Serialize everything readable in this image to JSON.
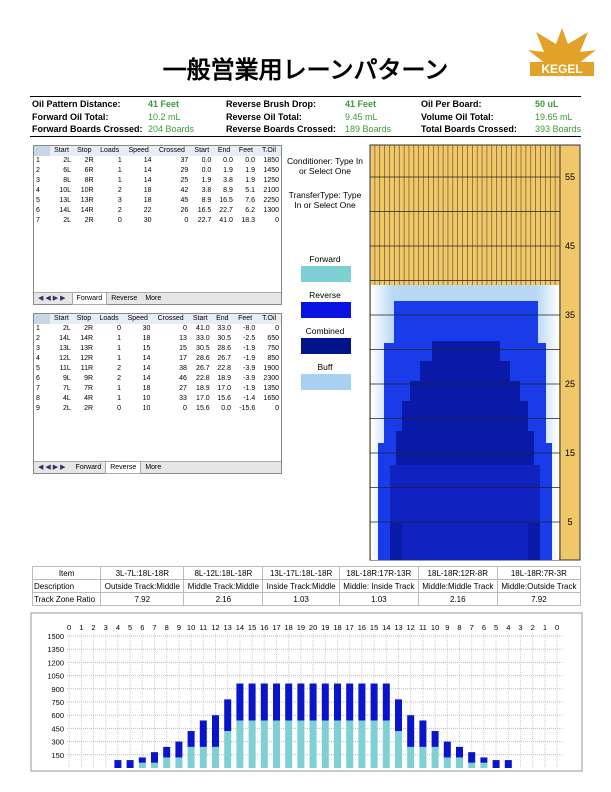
{
  "header": {
    "title": "一般営業用レーンパターン",
    "logo": "KEGEL"
  },
  "info": [
    {
      "label": "Oil Pattern Distance:",
      "value": "41 Feet"
    },
    {
      "label": "Reverse Brush Drop:",
      "value": "41 Feet"
    },
    {
      "label": "Oil Per Board:",
      "value": "50 uL"
    },
    {
      "label": "Forward Oil Total:",
      "value": "10.2 mL"
    },
    {
      "label": "Reverse Oil Total:",
      "value": "9.45 mL"
    },
    {
      "label": "Volume Oil Total:",
      "value": "19.65 mL"
    },
    {
      "label": "Forward Boards Crossed:",
      "value": "204 Boards"
    },
    {
      "label": "Reverse Boards Crossed:",
      "value": "189 Boards"
    },
    {
      "label": "Total Boards Crossed:",
      "value": "393 Boards"
    }
  ],
  "forward_table": {
    "columns": [
      "Start",
      "Stop",
      "Loads",
      "Speed",
      "Crossed",
      "Start",
      "End",
      "Feet",
      "T.Oil"
    ],
    "rows": [
      [
        "1",
        "2L",
        "2R",
        "1",
        "14",
        "37",
        "0.0",
        "0.0",
        "0.0",
        "1850"
      ],
      [
        "2",
        "6L",
        "6R",
        "1",
        "14",
        "29",
        "0.0",
        "1.9",
        "1.9",
        "1450"
      ],
      [
        "3",
        "8L",
        "8R",
        "1",
        "14",
        "25",
        "1.9",
        "3.8",
        "1.9",
        "1250"
      ],
      [
        "4",
        "10L",
        "10R",
        "2",
        "18",
        "42",
        "3.8",
        "8.9",
        "5.1",
        "2100"
      ],
      [
        "5",
        "13L",
        "13R",
        "3",
        "18",
        "45",
        "8.9",
        "16.5",
        "7.6",
        "2250"
      ],
      [
        "6",
        "14L",
        "14R",
        "2",
        "22",
        "26",
        "16.5",
        "22.7",
        "6.2",
        "1300"
      ],
      [
        "7",
        "2L",
        "2R",
        "0",
        "30",
        "0",
        "22.7",
        "41.0",
        "18.3",
        "0"
      ]
    ],
    "tabs": [
      "Forward",
      "Reverse",
      "More"
    ]
  },
  "reverse_table": {
    "columns": [
      "Start",
      "Stop",
      "Loads",
      "Speed",
      "Crossed",
      "Start",
      "End",
      "Feet",
      "T.Oil"
    ],
    "rows": [
      [
        "1",
        "2L",
        "2R",
        "0",
        "30",
        "0",
        "41.0",
        "33.0",
        "-8.0",
        "0"
      ],
      [
        "2",
        "14L",
        "14R",
        "1",
        "18",
        "13",
        "33.0",
        "30.5",
        "-2.5",
        "650"
      ],
      [
        "3",
        "13L",
        "13R",
        "1",
        "15",
        "15",
        "30.5",
        "28.6",
        "-1.9",
        "750"
      ],
      [
        "4",
        "12L",
        "12R",
        "1",
        "14",
        "17",
        "28.6",
        "26.7",
        "-1.9",
        "850"
      ],
      [
        "5",
        "11L",
        "11R",
        "2",
        "14",
        "38",
        "26.7",
        "22.8",
        "-3.9",
        "1900"
      ],
      [
        "6",
        "9L",
        "9R",
        "2",
        "14",
        "46",
        "22.8",
        "18.9",
        "-3.9",
        "2300"
      ],
      [
        "7",
        "7L",
        "7R",
        "1",
        "18",
        "27",
        "18.9",
        "17.0",
        "-1.9",
        "1350"
      ],
      [
        "8",
        "4L",
        "4R",
        "1",
        "10",
        "33",
        "17.0",
        "15.6",
        "-1.4",
        "1650"
      ],
      [
        "9",
        "2L",
        "2R",
        "0",
        "10",
        "0",
        "15.6",
        "0.0",
        "-15.6",
        "0"
      ]
    ],
    "tabs": [
      "Forward",
      "Reverse",
      "More"
    ]
  },
  "legend": {
    "conditioner": "Conditioner: Type In or Select One",
    "transfer": "TransferType: Type In or Select One",
    "items": [
      {
        "label": "Forward",
        "color": "#7fd0d4"
      },
      {
        "label": "Reverse",
        "color": "#0a14e0"
      },
      {
        "label": "Combined",
        "color": "#00148a"
      },
      {
        "label": "Buff",
        "color": "#a8d0f0"
      }
    ]
  },
  "lane": {
    "ticks": [
      55,
      45,
      35,
      25,
      15,
      5
    ],
    "ylim": [
      0,
      60
    ]
  },
  "track_zones": {
    "header": [
      "Item",
      "3L-7L:18L-18R",
      "8L-12L:18L-18R",
      "13L-17L:18L-18R",
      "18L-18R:17R-13R",
      "18L-18R:12R-8R",
      "18L-18R:7R-3R"
    ],
    "description": [
      "Description",
      "Outside Track:Middle",
      "Middle Track:Middle",
      "Inside Track:Middle",
      "Middle: Inside Track",
      "Middle:Middle Track",
      "Middle:Outside Track"
    ],
    "ratio": [
      "Track Zone Ratio",
      "7.92",
      "2.16",
      "1.03",
      "1.03",
      "2.16",
      "7.92"
    ]
  },
  "chart_data": {
    "type": "stacked_bar",
    "categories": [
      0,
      1,
      2,
      3,
      4,
      5,
      6,
      7,
      8,
      9,
      10,
      11,
      12,
      13,
      14,
      15,
      16,
      17,
      18,
      19,
      20,
      19,
      18,
      17,
      16,
      15,
      14,
      13,
      12,
      11,
      10,
      9,
      8,
      7,
      6,
      5,
      4,
      3,
      2,
      1,
      0
    ],
    "series": [
      {
        "name": "Forward",
        "color": "#7fd0d4",
        "values": [
          0,
          0,
          0,
          0,
          0,
          0,
          60,
          60,
          120,
          120,
          240,
          240,
          240,
          420,
          540,
          540,
          540,
          540,
          540,
          540,
          540,
          540,
          540,
          540,
          540,
          540,
          540,
          420,
          240,
          240,
          240,
          120,
          120,
          60,
          60,
          0,
          0,
          0,
          0,
          0,
          0
        ]
      },
      {
        "name": "Reverse",
        "color": "#0a14c8",
        "values": [
          0,
          0,
          0,
          0,
          90,
          90,
          60,
          120,
          120,
          180,
          180,
          300,
          360,
          360,
          420,
          420,
          420,
          420,
          420,
          420,
          420,
          420,
          420,
          420,
          420,
          420,
          420,
          360,
          360,
          300,
          180,
          180,
          120,
          120,
          60,
          90,
          90,
          0,
          0,
          0,
          0
        ]
      }
    ],
    "ylim": [
      0,
      1500
    ],
    "yticks": [
      150,
      300,
      450,
      600,
      750,
      900,
      1050,
      1200,
      1350,
      1500
    ],
    "grid": true
  }
}
